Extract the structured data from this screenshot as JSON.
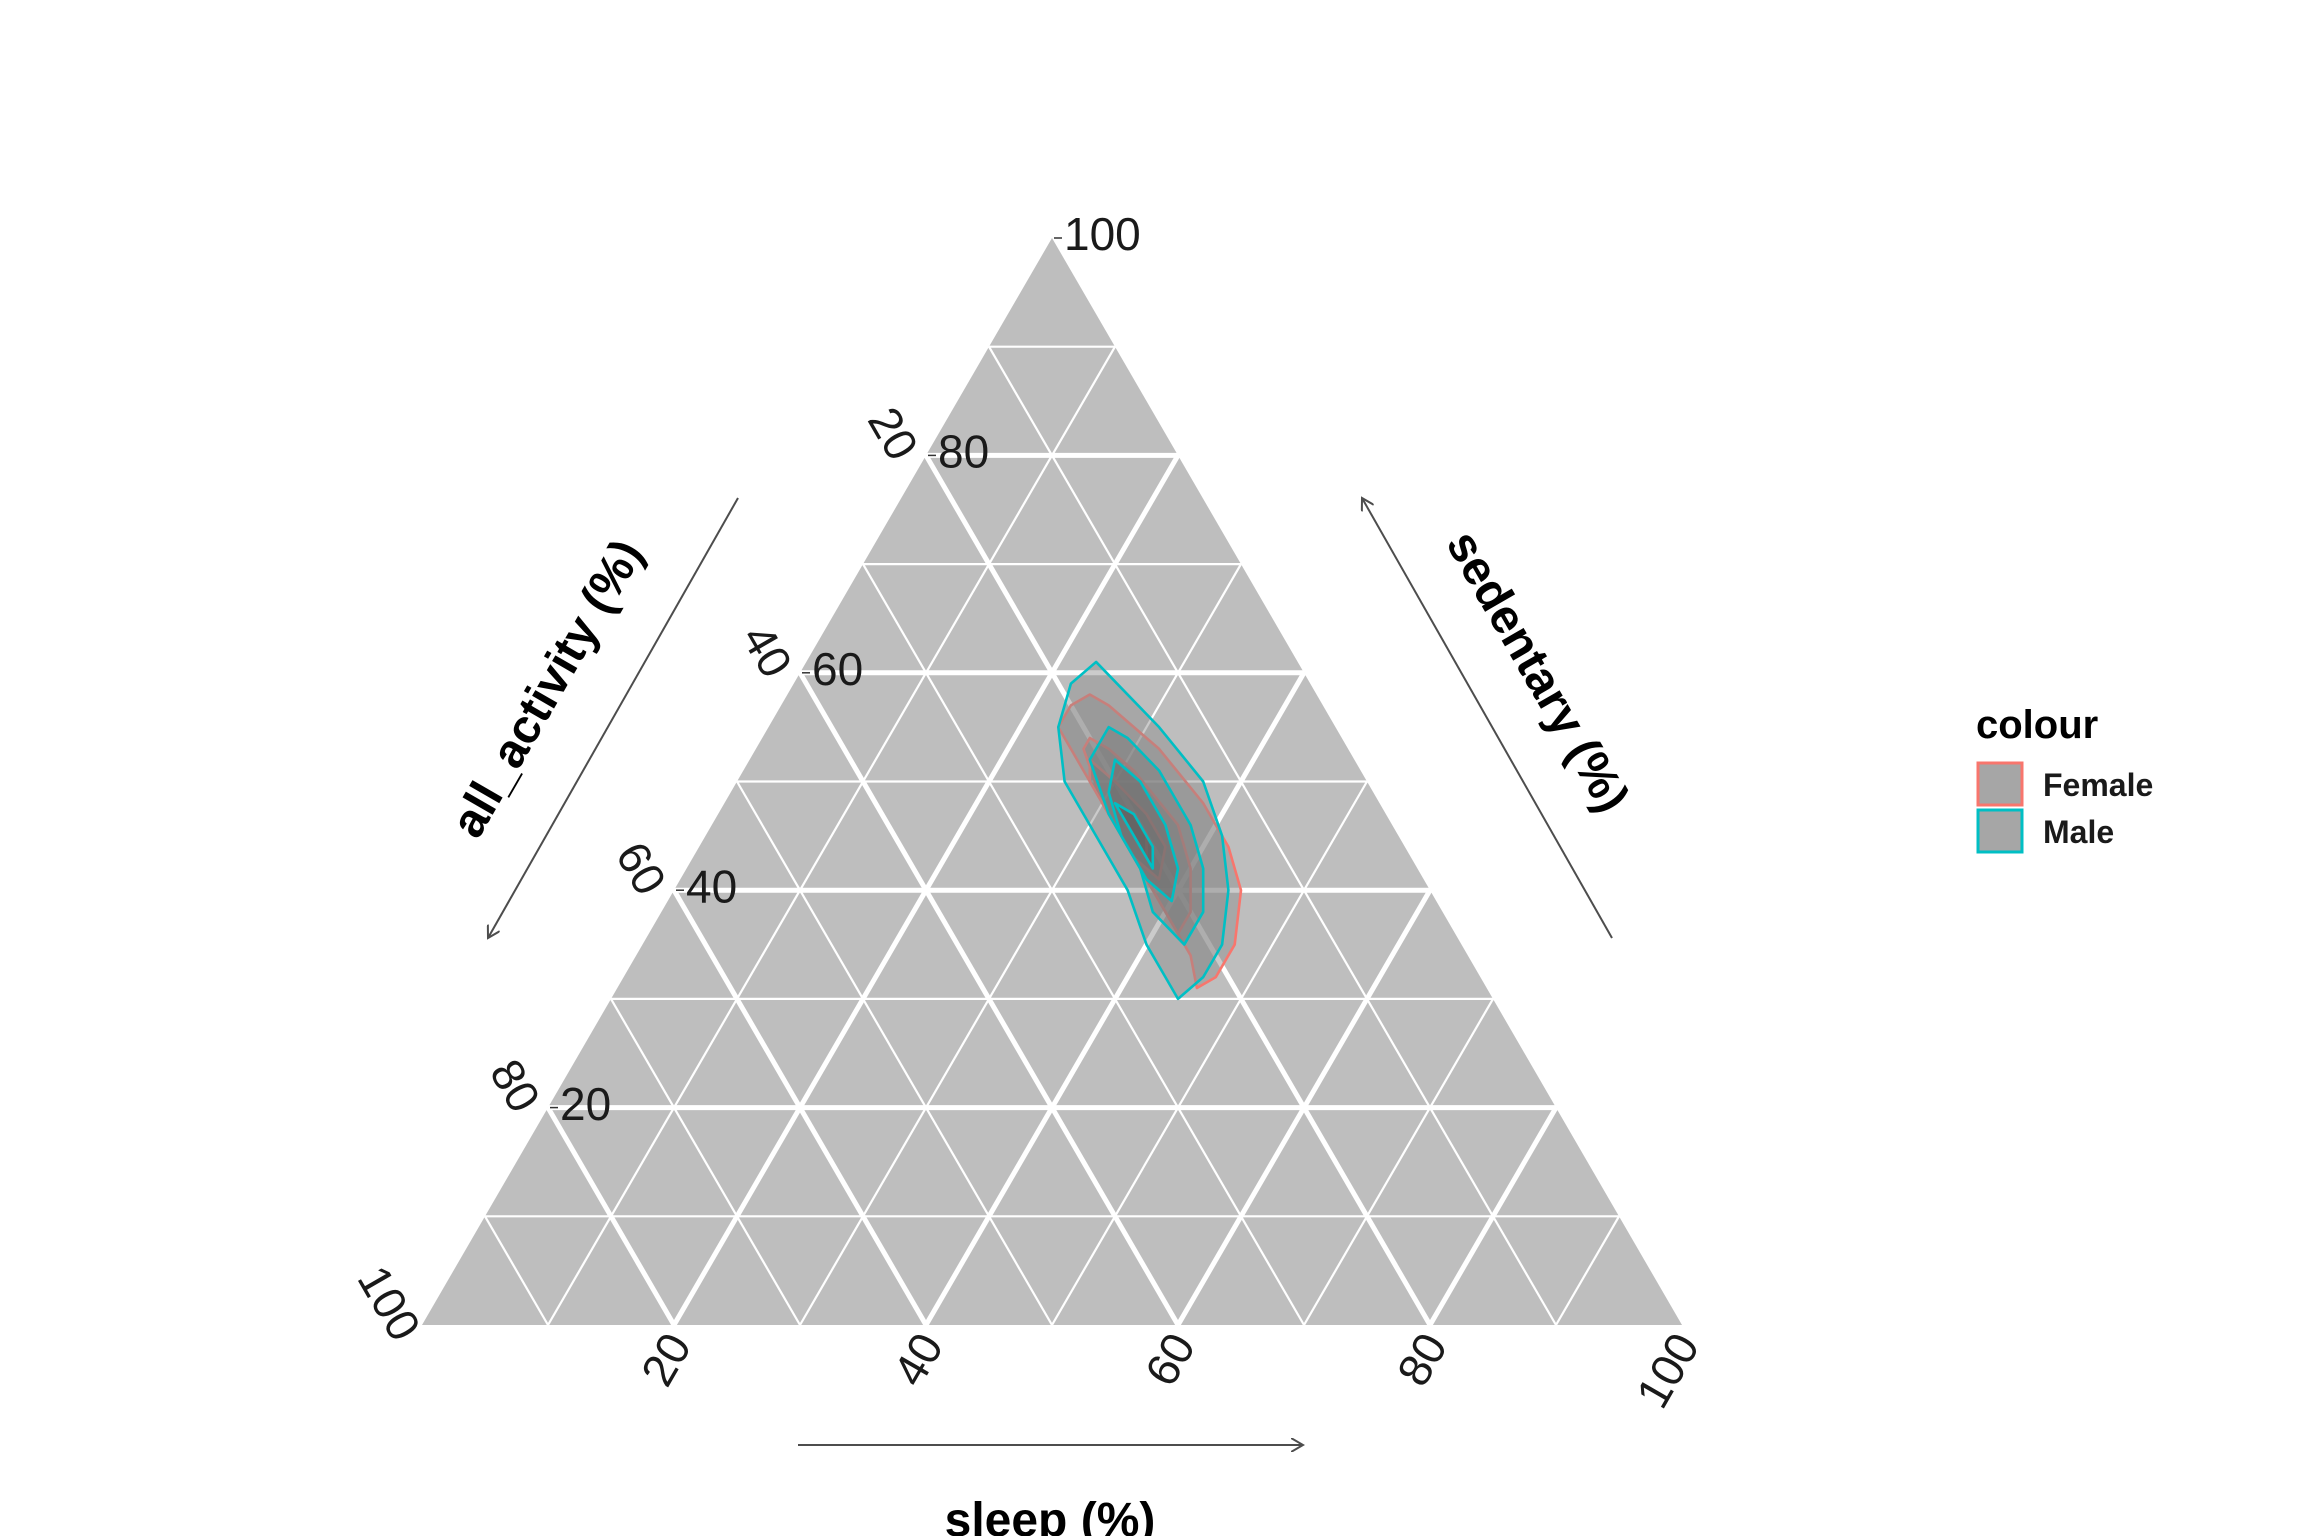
{
  "chart_data": {
    "type": "ternary-density",
    "axes": {
      "sedentary": {
        "label": "sedentary (%)",
        "ticks": [
          20,
          40,
          60,
          80,
          100
        ]
      },
      "all_activity": {
        "label": "all_activity (%)",
        "ticks": [
          20,
          40,
          60,
          80,
          100
        ]
      },
      "sleep": {
        "label": "sleep (%)",
        "ticks": [
          20,
          40,
          60,
          80,
          100
        ]
      }
    },
    "range": [
      0,
      100
    ],
    "grid": true,
    "legend": {
      "title": "colour",
      "position": "right",
      "entries": [
        {
          "name": "Female",
          "color": "#F8766D"
        },
        {
          "name": "Male",
          "color": "#00BFC4"
        }
      ]
    },
    "series": [
      {
        "name": "Female",
        "color": "#F8766D",
        "contours": [
          [
            [
              31,
              23,
              46
            ],
            [
              32,
              21,
              47
            ],
            [
              35,
              18,
              47
            ],
            [
              40,
              15,
              45
            ],
            [
              44,
              14,
              42
            ],
            [
              48,
              14,
              38
            ],
            [
              53,
              15,
              32
            ],
            [
              55,
              16,
              29
            ],
            [
              57,
              17,
              26
            ],
            [
              58,
              18,
              24
            ],
            [
              57,
              20,
              23
            ],
            [
              55,
              22,
              23
            ],
            [
              50,
              22,
              28
            ],
            [
              45,
              22,
              33
            ],
            [
              40,
              22,
              38
            ],
            [
              36,
              22,
              42
            ],
            [
              34,
              22,
              44
            ]
          ],
          [
            [
              36,
              22,
              42
            ],
            [
              38,
              20,
              42
            ],
            [
              42,
              18,
              40
            ],
            [
              46,
              17,
              37
            ],
            [
              51,
              18,
              31
            ],
            [
              53,
              19,
              28
            ],
            [
              54,
              20,
              26
            ],
            [
              53,
              21,
              26
            ],
            [
              48,
              22,
              30
            ],
            [
              42,
              22,
              36
            ],
            [
              38,
              22,
              40
            ]
          ],
          [
            [
              41,
              21,
              38
            ],
            [
              44,
              19,
              37
            ],
            [
              47,
              19,
              34
            ],
            [
              50,
              20,
              30
            ],
            [
              52,
              21,
              27
            ],
            [
              50,
              22,
              28
            ],
            [
              46,
              22,
              32
            ],
            [
              43,
              22,
              35
            ]
          ],
          [
            [
              43,
              21,
              36
            ],
            [
              45,
              20,
              35
            ],
            [
              47,
              20,
              33
            ],
            [
              48,
              21,
              31
            ],
            [
              46,
              21,
              33
            ],
            [
              44,
              21,
              35
            ]
          ]
        ]
      },
      {
        "name": "Male",
        "color": "#00BFC4",
        "contours": [
          [
            [
              30,
              25,
              45
            ],
            [
              32,
              22,
              46
            ],
            [
              35,
              19,
              46
            ],
            [
              40,
              16,
              44
            ],
            [
              45,
              14,
              41
            ],
            [
              50,
              13,
              37
            ],
            [
              55,
              14,
              31
            ],
            [
              58,
              15,
              27
            ],
            [
              61,
              16,
              23
            ],
            [
              59,
              19,
              22
            ],
            [
              55,
              22,
              23
            ],
            [
              50,
              24,
              26
            ],
            [
              45,
              24,
              31
            ],
            [
              40,
              24,
              36
            ],
            [
              35,
              25,
              40
            ],
            [
              32,
              25,
              43
            ]
          ],
          [
            [
              35,
              22,
              43
            ],
            [
              38,
              19,
              43
            ],
            [
              42,
              17,
              41
            ],
            [
              46,
              16,
              38
            ],
            [
              51,
              16,
              33
            ],
            [
              54,
              17,
              29
            ],
            [
              55,
              18,
              27
            ],
            [
              52,
              21,
              27
            ],
            [
              47,
              22,
              31
            ],
            [
              42,
              22,
              36
            ],
            [
              38,
              23,
              39
            ]
          ],
          [
            [
              39,
              21,
              40
            ],
            [
              42,
              19,
              39
            ],
            [
              46,
              18,
              36
            ],
            [
              50,
              18,
              32
            ],
            [
              52,
              19,
              29
            ],
            [
              49,
              21,
              30
            ],
            [
              45,
              22,
              33
            ],
            [
              41,
              22,
              37
            ]
          ],
          [
            [
              42,
              21,
              37
            ],
            [
              44,
              20,
              36
            ],
            [
              47,
              20,
              33
            ],
            [
              48,
              21,
              31
            ],
            [
              46,
              21,
              33
            ],
            [
              43,
              21,
              36
            ]
          ]
        ]
      }
    ]
  }
}
